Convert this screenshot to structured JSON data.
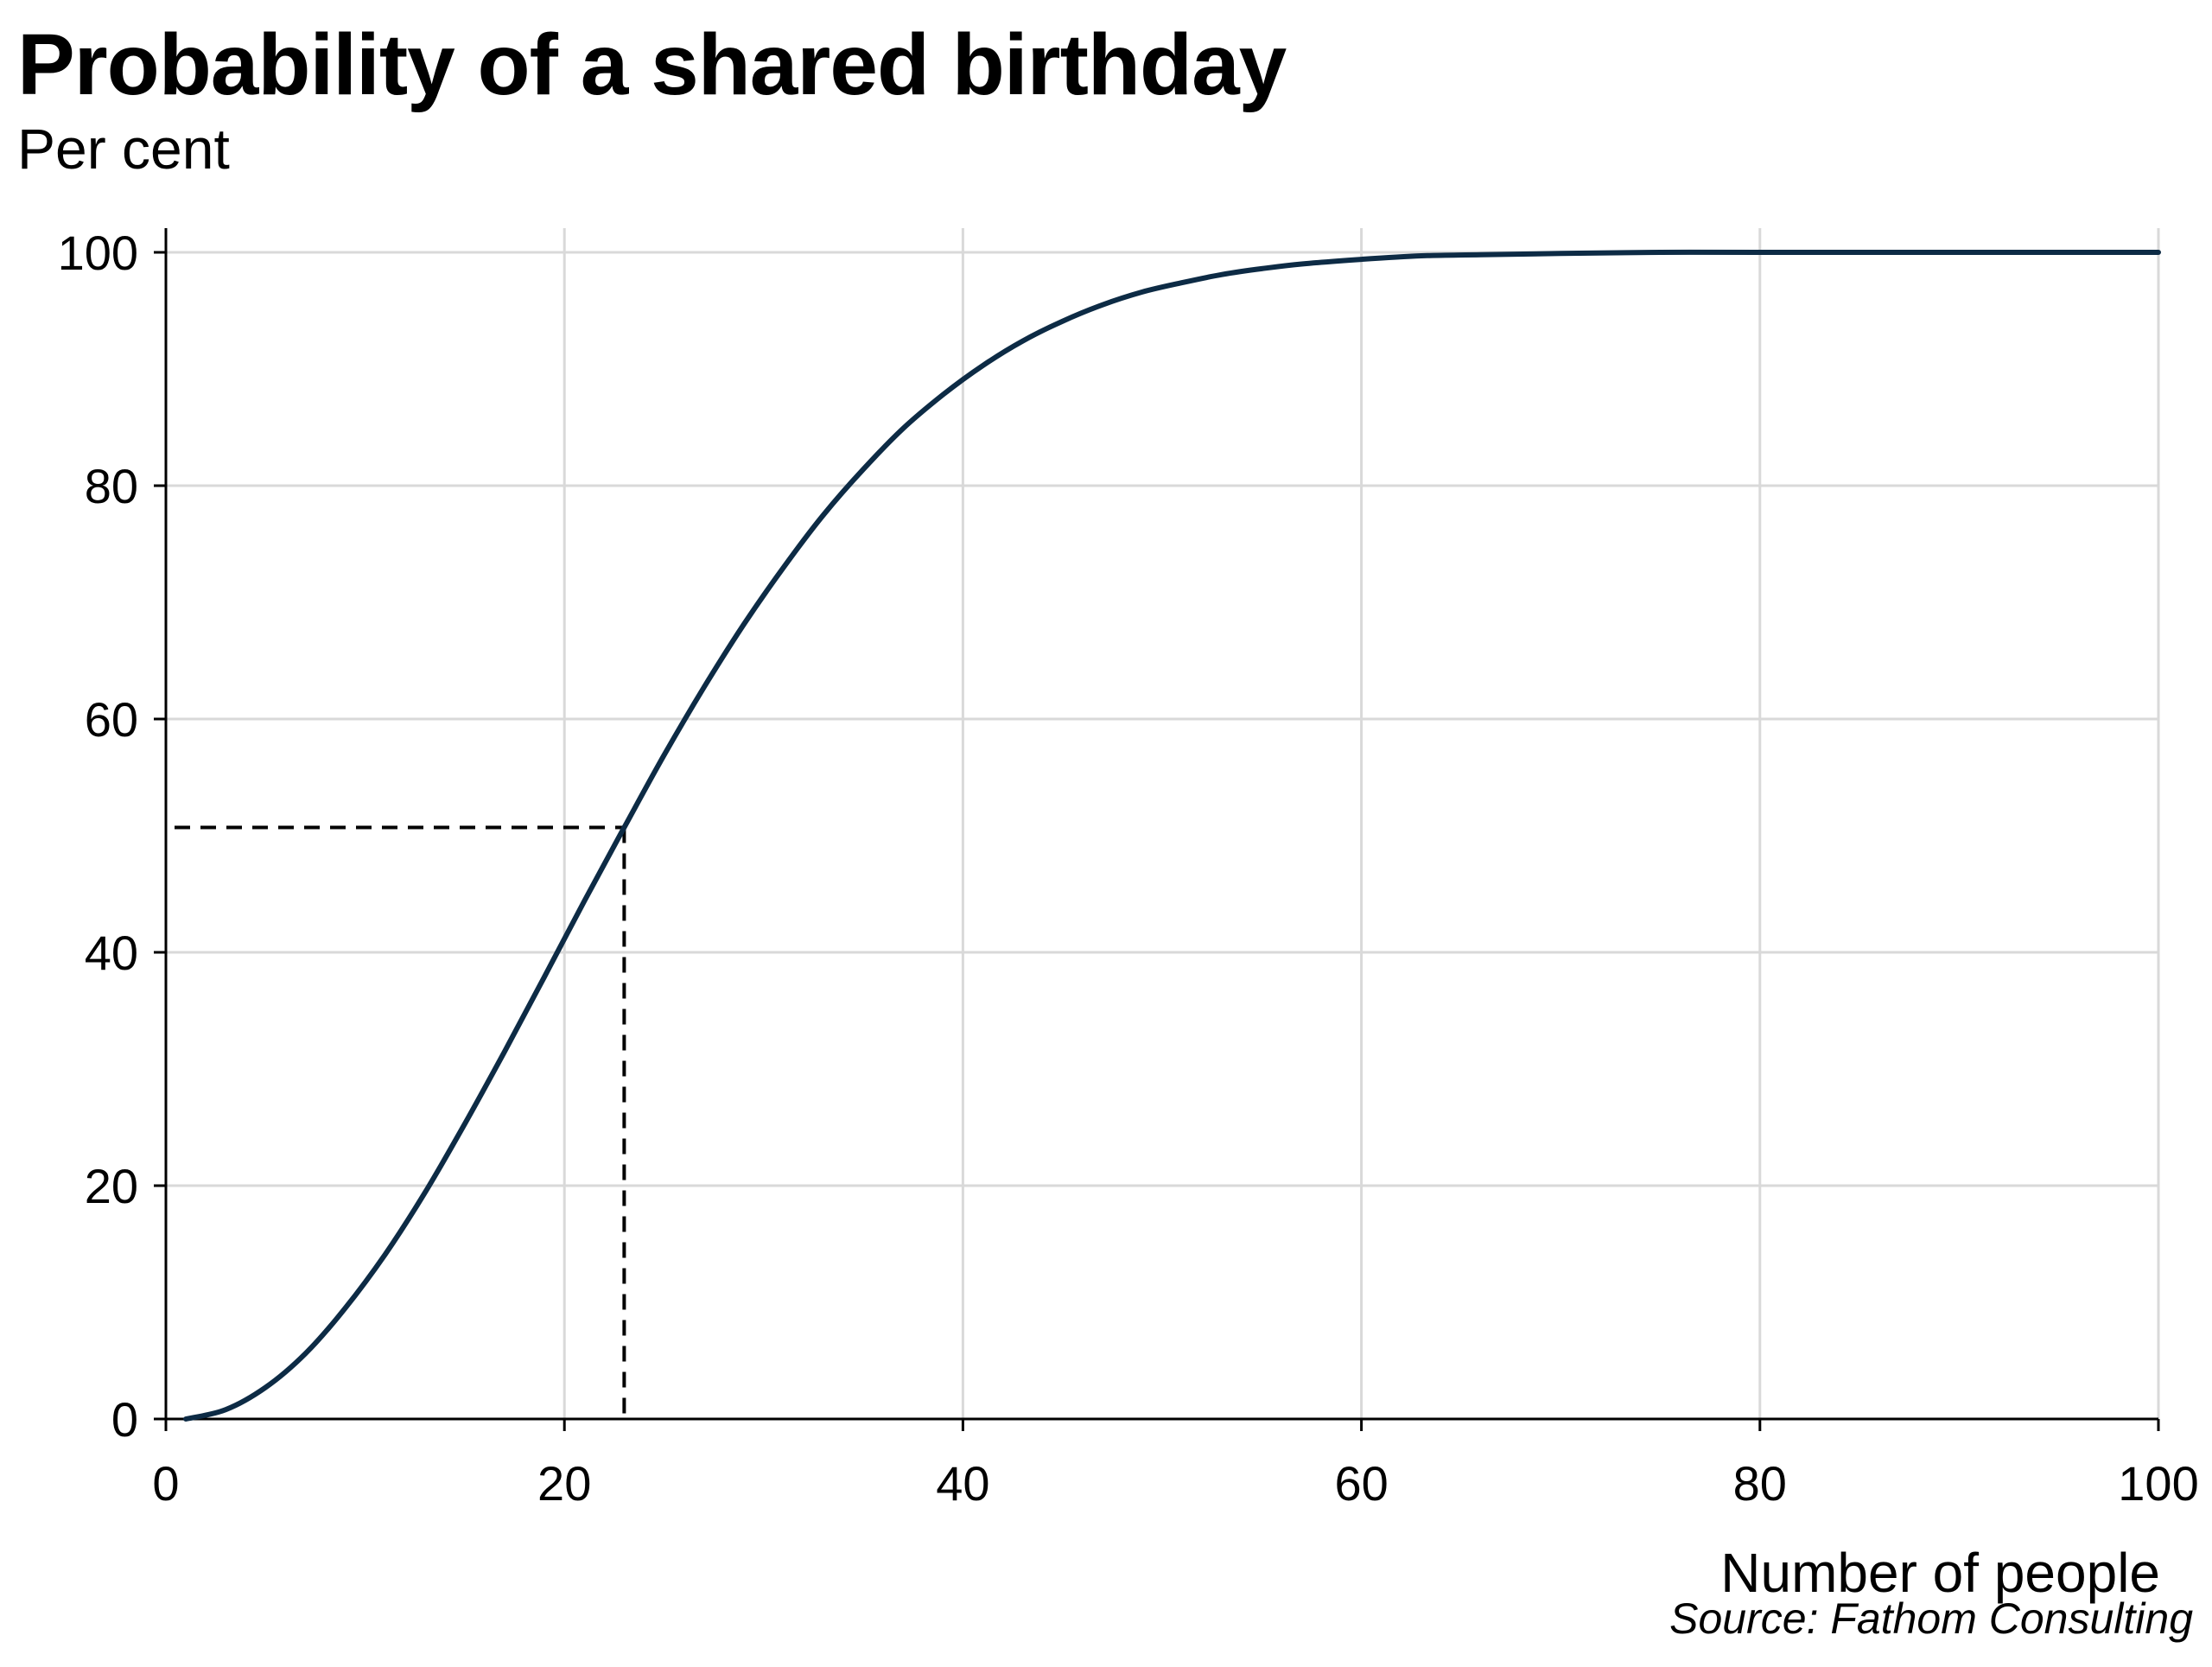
{
  "chart_data": {
    "type": "line",
    "title": "Probability of a shared birthday",
    "subtitle": "Per cent",
    "xlabel": "Number of people",
    "ylabel": "",
    "xlim": [
      0,
      100
    ],
    "ylim": [
      0,
      100
    ],
    "xticks": [
      0,
      20,
      40,
      60,
      80,
      100
    ],
    "yticks": [
      0,
      20,
      40,
      60,
      80,
      100
    ],
    "grid": true,
    "series": [
      {
        "x": [
          1,
          3,
          5,
          7,
          9,
          11,
          13,
          15,
          17,
          19,
          21,
          23,
          25,
          27,
          29,
          31,
          33,
          35,
          37,
          39,
          41,
          43,
          45,
          47,
          49,
          51,
          53,
          55,
          57,
          60,
          63,
          66,
          70,
          75,
          80,
          90,
          100
        ],
        "y": [
          0,
          0.8,
          2.7,
          5.6,
          9.5,
          14.1,
          19.4,
          25.3,
          31.5,
          37.9,
          44.4,
          50.7,
          56.9,
          62.7,
          68.1,
          73.0,
          77.5,
          81.4,
          84.9,
          87.8,
          90.3,
          92.4,
          94.1,
          95.5,
          96.6,
          97.4,
          98.1,
          98.6,
          99.0,
          99.4,
          99.7,
          99.8,
          99.9,
          100.0,
          100.0,
          100.0,
          100.0
        ],
        "color": "#0d2b45"
      }
    ],
    "annotations": [
      {
        "type": "dashed-guide",
        "x": 23,
        "y": 50.7,
        "color": "#000000"
      }
    ],
    "source": "Source: Fathom Consulting"
  },
  "colors": {
    "line": "#0d2b45",
    "grid": "#d9d9d9",
    "axis": "#000000",
    "guide": "#000000"
  }
}
